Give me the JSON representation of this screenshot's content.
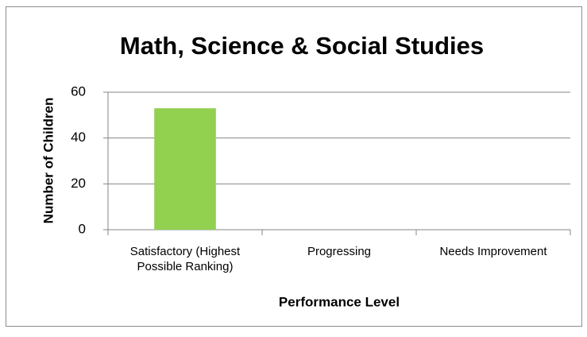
{
  "chart_data": {
    "type": "bar",
    "title": "Math, Science & Social Studies",
    "x_label": "Performance Level",
    "y_label": "Number of Children",
    "categories": [
      "Satisfactory (Highest Possible Ranking)",
      "Progressing",
      "Needs Improvement"
    ],
    "values": [
      53,
      0,
      0
    ],
    "color": "#92d050",
    "ylim": [
      0,
      60
    ],
    "yticks": [
      0,
      20,
      40,
      60
    ],
    "grid": true
  }
}
